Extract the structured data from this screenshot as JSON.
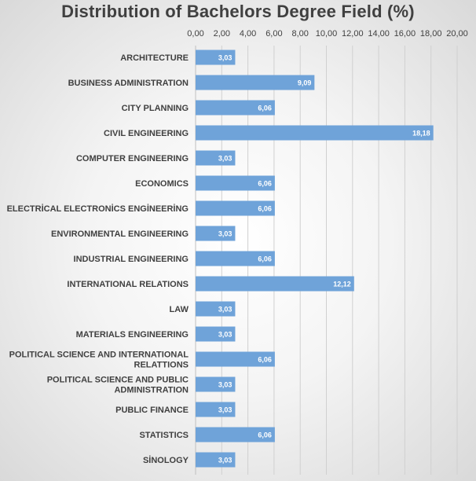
{
  "chart_data": {
    "type": "bar",
    "orientation": "horizontal",
    "title": "Distribution of Bachelors Degree Field (%)",
    "xlabel": "",
    "ylabel": "",
    "xlim": [
      0,
      20
    ],
    "x_ticks": [
      "0,00",
      "2,00",
      "4,00",
      "6,00",
      "8,00",
      "10,00",
      "12,00",
      "14,00",
      "16,00",
      "18,00",
      "20,00"
    ],
    "x_axis_position": "top",
    "grid": true,
    "bar_color": "#6fa3d9",
    "categories": [
      [
        "ARCHITECTURE"
      ],
      [
        "BUSINESS ADMINISTRATION"
      ],
      [
        "CITY PLANNING"
      ],
      [
        "CIVIL ENGINEERING"
      ],
      [
        "COMPUTER ENGINEERING"
      ],
      [
        "ECONOMICS"
      ],
      [
        "ELECTRİCAL ELECTRONİCS ENGİNEERİNG"
      ],
      [
        "ENVIRONMENTAL ENGINEERING"
      ],
      [
        "INDUSTRIAL ENGINEERING"
      ],
      [
        "INTERNATIONAL RELATIONS"
      ],
      [
        "LAW"
      ],
      [
        "MATERIALS ENGINEERING"
      ],
      [
        "POLITICAL SCIENCE AND INTERNATIONAL",
        "RELATTIONS"
      ],
      [
        "POLITICAL SCIENCE AND PUBLIC",
        "ADMINISTRATION"
      ],
      [
        "PUBLIC FINANCE"
      ],
      [
        "STATISTICS"
      ],
      [
        "SİNOLOGY"
      ]
    ],
    "values": [
      3.03,
      9.09,
      6.06,
      18.18,
      3.03,
      6.06,
      6.06,
      3.03,
      6.06,
      12.12,
      3.03,
      3.03,
      6.06,
      3.03,
      3.03,
      6.06,
      3.03
    ],
    "data_labels": [
      "3,03",
      "9,09",
      "6,06",
      "18,18",
      "3,03",
      "6,06",
      "6,06",
      "3,03",
      "6,06",
      "12,12",
      "3,03",
      "3,03",
      "6,06",
      "3,03",
      "3,03",
      "6,06",
      "3,03"
    ]
  }
}
